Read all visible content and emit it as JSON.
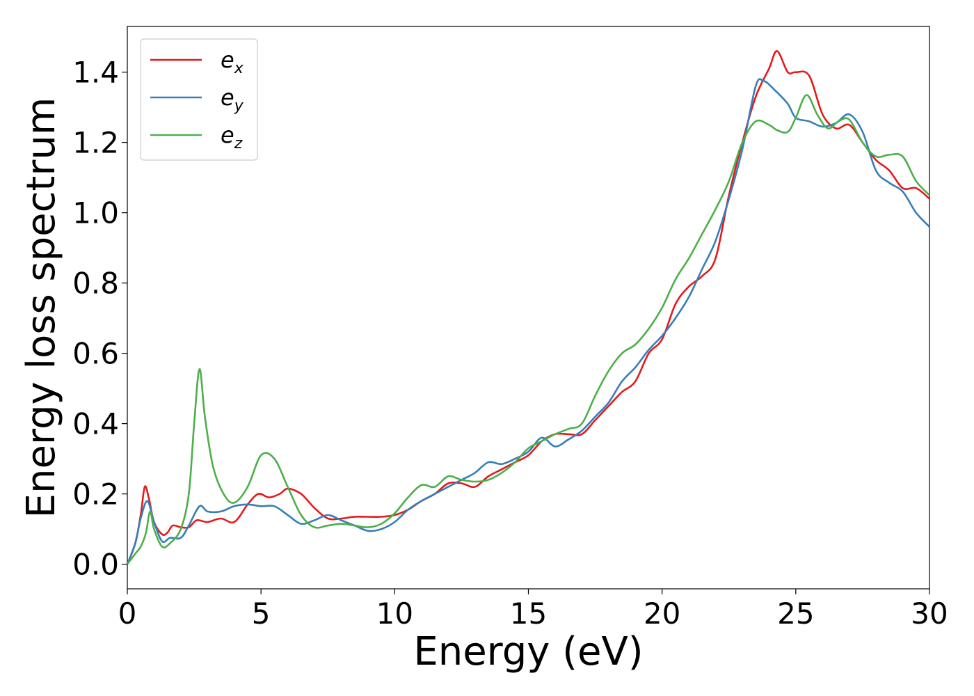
{
  "chart_data": {
    "type": "line",
    "title": "",
    "xlabel": "Energy (eV)",
    "ylabel": "Energy loss spectrum",
    "xlim": [
      0,
      30
    ],
    "ylim": [
      -0.07,
      1.53
    ],
    "xticks": [
      0,
      5,
      10,
      15,
      20,
      25,
      30
    ],
    "xtick_labels": [
      "0",
      "5",
      "10",
      "15",
      "20",
      "25",
      "30"
    ],
    "yticks": [
      0.0,
      0.2,
      0.4,
      0.6,
      0.8,
      1.0,
      1.2,
      1.4
    ],
    "ytick_labels": [
      "0.0",
      "0.2",
      "0.4",
      "0.6",
      "0.8",
      "1.0",
      "1.2",
      "1.4"
    ],
    "grid": false,
    "legend_position": "top-left",
    "series": [
      {
        "name": "e",
        "subscript": "x",
        "color": "#e41a1c",
        "points": [
          [
            0,
            0
          ],
          [
            0.3,
            0.06
          ],
          [
            0.5,
            0.14
          ],
          [
            0.65,
            0.22
          ],
          [
            0.8,
            0.19
          ],
          [
            1.0,
            0.12
          ],
          [
            1.3,
            0.085
          ],
          [
            1.5,
            0.09
          ],
          [
            1.7,
            0.11
          ],
          [
            2.0,
            0.105
          ],
          [
            2.3,
            0.105
          ],
          [
            2.6,
            0.125
          ],
          [
            3.0,
            0.12
          ],
          [
            3.5,
            0.13
          ],
          [
            4.0,
            0.12
          ],
          [
            4.5,
            0.17
          ],
          [
            4.9,
            0.2
          ],
          [
            5.3,
            0.19
          ],
          [
            5.7,
            0.2
          ],
          [
            6.0,
            0.215
          ],
          [
            6.5,
            0.2
          ],
          [
            7.0,
            0.16
          ],
          [
            7.5,
            0.13
          ],
          [
            8.0,
            0.13
          ],
          [
            8.5,
            0.135
          ],
          [
            9.0,
            0.135
          ],
          [
            9.5,
            0.135
          ],
          [
            10.0,
            0.14
          ],
          [
            10.5,
            0.155
          ],
          [
            11.0,
            0.18
          ],
          [
            11.5,
            0.2
          ],
          [
            12.0,
            0.23
          ],
          [
            12.5,
            0.23
          ],
          [
            13.0,
            0.22
          ],
          [
            13.5,
            0.25
          ],
          [
            14.0,
            0.27
          ],
          [
            14.5,
            0.29
          ],
          [
            15.0,
            0.31
          ],
          [
            15.5,
            0.35
          ],
          [
            16.0,
            0.37
          ],
          [
            16.5,
            0.37
          ],
          [
            17.0,
            0.37
          ],
          [
            17.5,
            0.41
          ],
          [
            18.0,
            0.45
          ],
          [
            18.5,
            0.49
          ],
          [
            19.0,
            0.52
          ],
          [
            19.5,
            0.6
          ],
          [
            20.0,
            0.64
          ],
          [
            20.5,
            0.74
          ],
          [
            21.0,
            0.79
          ],
          [
            21.5,
            0.82
          ],
          [
            22.0,
            0.87
          ],
          [
            22.5,
            1.05
          ],
          [
            23.0,
            1.2
          ],
          [
            23.5,
            1.33
          ],
          [
            24.0,
            1.41
          ],
          [
            24.3,
            1.46
          ],
          [
            24.7,
            1.4
          ],
          [
            25.0,
            1.4
          ],
          [
            25.5,
            1.39
          ],
          [
            26.0,
            1.28
          ],
          [
            26.5,
            1.24
          ],
          [
            27.0,
            1.25
          ],
          [
            27.5,
            1.2
          ],
          [
            28.0,
            1.15
          ],
          [
            28.5,
            1.12
          ],
          [
            29.0,
            1.07
          ],
          [
            29.5,
            1.07
          ],
          [
            30.0,
            1.04
          ]
        ]
      },
      {
        "name": "e",
        "subscript": "y",
        "color": "#377eb8",
        "points": [
          [
            0,
            0
          ],
          [
            0.3,
            0.06
          ],
          [
            0.5,
            0.13
          ],
          [
            0.75,
            0.18
          ],
          [
            1.0,
            0.12
          ],
          [
            1.3,
            0.065
          ],
          [
            1.6,
            0.075
          ],
          [
            2.0,
            0.075
          ],
          [
            2.3,
            0.11
          ],
          [
            2.7,
            0.165
          ],
          [
            3.0,
            0.15
          ],
          [
            3.5,
            0.15
          ],
          [
            4.0,
            0.165
          ],
          [
            4.5,
            0.17
          ],
          [
            5.0,
            0.165
          ],
          [
            5.5,
            0.165
          ],
          [
            6.0,
            0.14
          ],
          [
            6.5,
            0.115
          ],
          [
            7.0,
            0.125
          ],
          [
            7.5,
            0.14
          ],
          [
            8.0,
            0.125
          ],
          [
            8.5,
            0.11
          ],
          [
            9.0,
            0.095
          ],
          [
            9.5,
            0.1
          ],
          [
            10.0,
            0.12
          ],
          [
            10.5,
            0.155
          ],
          [
            11.0,
            0.18
          ],
          [
            11.5,
            0.2
          ],
          [
            12.0,
            0.22
          ],
          [
            12.5,
            0.24
          ],
          [
            13.0,
            0.26
          ],
          [
            13.5,
            0.29
          ],
          [
            14.0,
            0.285
          ],
          [
            14.5,
            0.3
          ],
          [
            15.0,
            0.32
          ],
          [
            15.5,
            0.36
          ],
          [
            16.0,
            0.335
          ],
          [
            16.5,
            0.355
          ],
          [
            17.0,
            0.38
          ],
          [
            17.5,
            0.42
          ],
          [
            18.0,
            0.46
          ],
          [
            18.5,
            0.52
          ],
          [
            19.0,
            0.56
          ],
          [
            19.5,
            0.61
          ],
          [
            20.0,
            0.65
          ],
          [
            20.5,
            0.7
          ],
          [
            21.0,
            0.76
          ],
          [
            21.5,
            0.84
          ],
          [
            22.0,
            0.92
          ],
          [
            22.5,
            1.04
          ],
          [
            23.0,
            1.18
          ],
          [
            23.5,
            1.36
          ],
          [
            23.8,
            1.375
          ],
          [
            24.2,
            1.35
          ],
          [
            24.7,
            1.31
          ],
          [
            25.0,
            1.27
          ],
          [
            25.5,
            1.26
          ],
          [
            26.0,
            1.245
          ],
          [
            26.5,
            1.255
          ],
          [
            27.0,
            1.28
          ],
          [
            27.5,
            1.23
          ],
          [
            28.0,
            1.12
          ],
          [
            28.5,
            1.085
          ],
          [
            29.0,
            1.06
          ],
          [
            29.5,
            1.0
          ],
          [
            30.0,
            0.96
          ]
        ]
      },
      {
        "name": "e",
        "subscript": "z",
        "color": "#4daf4a",
        "points": [
          [
            0,
            0
          ],
          [
            0.3,
            0.03
          ],
          [
            0.5,
            0.05
          ],
          [
            0.7,
            0.09
          ],
          [
            0.85,
            0.15
          ],
          [
            1.0,
            0.1
          ],
          [
            1.3,
            0.05
          ],
          [
            1.6,
            0.06
          ],
          [
            2.0,
            0.1
          ],
          [
            2.3,
            0.2
          ],
          [
            2.5,
            0.4
          ],
          [
            2.7,
            0.555
          ],
          [
            2.9,
            0.42
          ],
          [
            3.2,
            0.28
          ],
          [
            3.6,
            0.2
          ],
          [
            4.0,
            0.175
          ],
          [
            4.5,
            0.22
          ],
          [
            5.0,
            0.31
          ],
          [
            5.5,
            0.3
          ],
          [
            6.0,
            0.22
          ],
          [
            6.5,
            0.14
          ],
          [
            7.0,
            0.105
          ],
          [
            7.5,
            0.11
          ],
          [
            8.0,
            0.115
          ],
          [
            8.5,
            0.11
          ],
          [
            9.0,
            0.105
          ],
          [
            9.5,
            0.115
          ],
          [
            10.0,
            0.145
          ],
          [
            10.5,
            0.19
          ],
          [
            11.0,
            0.225
          ],
          [
            11.5,
            0.22
          ],
          [
            12.0,
            0.25
          ],
          [
            12.5,
            0.24
          ],
          [
            13.0,
            0.235
          ],
          [
            13.5,
            0.24
          ],
          [
            14.0,
            0.26
          ],
          [
            14.5,
            0.29
          ],
          [
            15.0,
            0.33
          ],
          [
            15.5,
            0.35
          ],
          [
            16.0,
            0.37
          ],
          [
            16.5,
            0.385
          ],
          [
            17.0,
            0.4
          ],
          [
            17.5,
            0.48
          ],
          [
            18.0,
            0.55
          ],
          [
            18.5,
            0.6
          ],
          [
            19.0,
            0.625
          ],
          [
            19.5,
            0.67
          ],
          [
            20.0,
            0.73
          ],
          [
            20.5,
            0.81
          ],
          [
            21.0,
            0.87
          ],
          [
            21.5,
            0.94
          ],
          [
            22.0,
            1.01
          ],
          [
            22.5,
            1.09
          ],
          [
            23.0,
            1.2
          ],
          [
            23.5,
            1.26
          ],
          [
            24.0,
            1.25
          ],
          [
            24.3,
            1.235
          ],
          [
            24.7,
            1.23
          ],
          [
            25.0,
            1.27
          ],
          [
            25.4,
            1.335
          ],
          [
            25.8,
            1.28
          ],
          [
            26.2,
            1.24
          ],
          [
            26.6,
            1.26
          ],
          [
            27.0,
            1.265
          ],
          [
            27.5,
            1.2
          ],
          [
            28.0,
            1.16
          ],
          [
            28.5,
            1.165
          ],
          [
            29.0,
            1.16
          ],
          [
            29.5,
            1.09
          ],
          [
            30.0,
            1.05
          ]
        ]
      }
    ]
  }
}
